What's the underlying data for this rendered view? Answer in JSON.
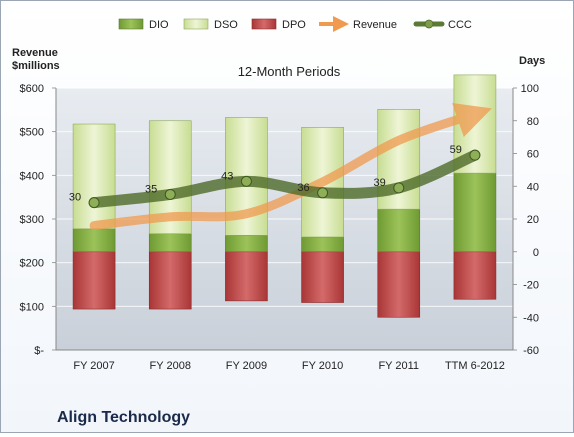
{
  "chart_data": {
    "type": "bar",
    "title": "12-Month Periods",
    "company": "Align Technology",
    "left_axis_label": [
      "Revenue",
      "$millions"
    ],
    "right_axis_label": "Days",
    "categories": [
      "FY 2007",
      "FY 2008",
      "FY 2009",
      "FY 2010",
      "FY 2011",
      "TTM 6-2012"
    ],
    "left_ticks": [
      "$-",
      "$100",
      "$200",
      "$300",
      "$400",
      "$500",
      "$600"
    ],
    "right_ticks": [
      "-60",
      "-40",
      "-20",
      "0",
      "20",
      "40",
      "60",
      "80",
      "100"
    ],
    "ylim_left": [
      0,
      600
    ],
    "ylim_right": [
      -60,
      100
    ],
    "grid": true,
    "legend_position": "top",
    "series": [
      {
        "name": "DIO",
        "axis": "right",
        "color": "#8db34a",
        "values": [
          14,
          11,
          10,
          9,
          26,
          48
        ]
      },
      {
        "name": "DSO",
        "axis": "right",
        "color": "#dbe9b4",
        "values": [
          64,
          69,
          72,
          67,
          61,
          60
        ]
      },
      {
        "name": "DPO",
        "axis": "right",
        "color": "#bf4a4a",
        "values": [
          -35,
          -35,
          -30,
          -31,
          -40,
          -29
        ]
      },
      {
        "name": "Revenue",
        "axis": "left",
        "color": "#f09a4f",
        "values": [
          285,
          305,
          312,
          385,
          480,
          540
        ]
      },
      {
        "name": "CCC",
        "axis": "right",
        "color": "#5b7a34",
        "values": [
          30,
          35,
          43,
          36,
          39,
          59
        ],
        "labels": [
          "30",
          "35",
          "43",
          "36",
          "39",
          "59"
        ]
      }
    ]
  }
}
